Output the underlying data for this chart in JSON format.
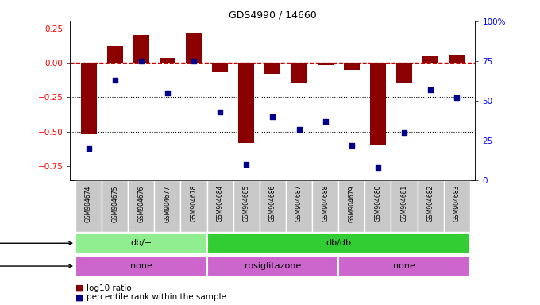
{
  "title": "GDS4990 / 14660",
  "samples": [
    "GSM904674",
    "GSM904675",
    "GSM904676",
    "GSM904677",
    "GSM904678",
    "GSM904684",
    "GSM904685",
    "GSM904686",
    "GSM904687",
    "GSM904688",
    "GSM904679",
    "GSM904680",
    "GSM904681",
    "GSM904682",
    "GSM904683"
  ],
  "log10_ratio": [
    -0.52,
    0.12,
    0.2,
    0.035,
    0.22,
    -0.07,
    -0.58,
    -0.08,
    -0.15,
    -0.02,
    -0.05,
    -0.6,
    -0.15,
    0.05,
    0.06
  ],
  "percentile": [
    20,
    63,
    75,
    55,
    75,
    43,
    10,
    40,
    32,
    37,
    22,
    8,
    30,
    57,
    52
  ],
  "genotype_groups": [
    {
      "label": "db/+",
      "start": 0,
      "end": 5,
      "color": "#90EE90"
    },
    {
      "label": "db/db",
      "start": 5,
      "end": 15,
      "color": "#32CD32"
    }
  ],
  "agent_groups": [
    {
      "label": "none",
      "start": 0,
      "end": 5,
      "color": "#CC66CC"
    },
    {
      "label": "rosiglitazone",
      "start": 5,
      "end": 10,
      "color": "#CC66CC"
    },
    {
      "label": "none",
      "start": 10,
      "end": 15,
      "color": "#CC66CC"
    }
  ],
  "bar_color": "#8B0000",
  "dot_color": "#00008B",
  "dashed_line_color": "#CC0000",
  "ylim_left": [
    -0.85,
    0.3
  ],
  "ylim_right": [
    0,
    100
  ],
  "hline_values": [
    -0.25,
    -0.5
  ],
  "right_ticks": [
    0,
    25,
    50,
    75,
    100
  ],
  "right_tick_labels": [
    "0",
    "25",
    "50",
    "75",
    "100%"
  ],
  "left_ticks": [
    -0.75,
    -0.5,
    -0.25,
    0.0,
    0.25
  ],
  "background_color": "#ffffff",
  "sample_label_color": "#cccccc"
}
